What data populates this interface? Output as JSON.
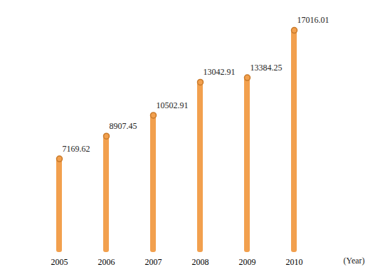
{
  "chart_data": {
    "type": "bar",
    "categories": [
      "2005",
      "2006",
      "2007",
      "2008",
      "2009",
      "2010"
    ],
    "values": [
      7169.62,
      8907.45,
      10502.91,
      13042.91,
      13384.25,
      17016.01
    ],
    "x_label": "(Year)",
    "color": "#f2a04e",
    "ylim": [
      0,
      18000
    ],
    "data_labels": true,
    "tick_labels": "x",
    "grid": false
  }
}
